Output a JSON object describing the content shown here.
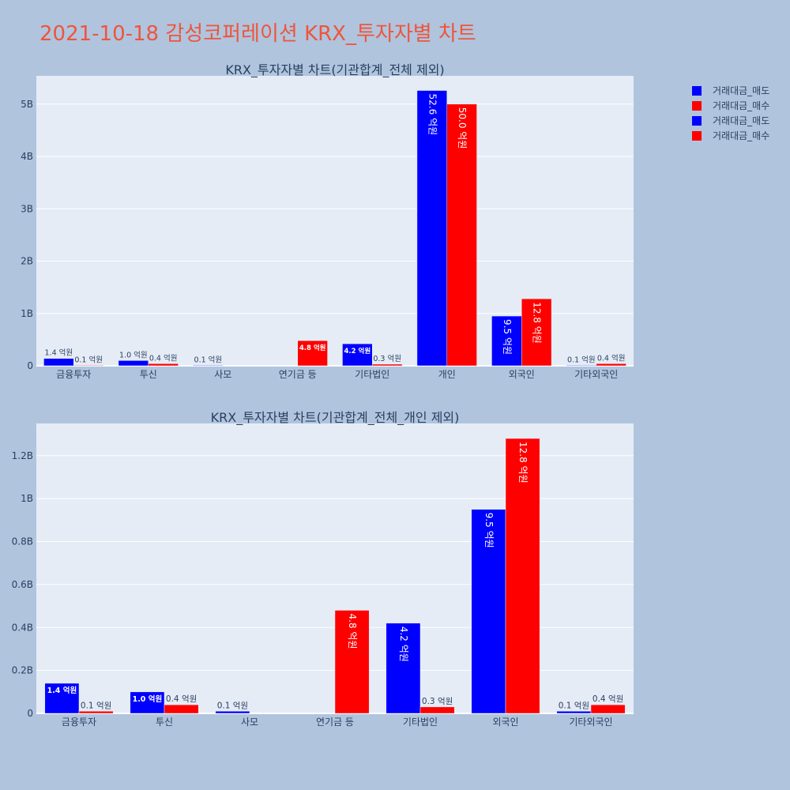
{
  "title": "2021-10-18 감성코퍼레이션 KRX_투자자별 차트",
  "legend": [
    {
      "label": "거래대금_매도",
      "color": "#0000ff"
    },
    {
      "label": "거래대금_매수",
      "color": "#ff0000"
    },
    {
      "label": "거래대금_매도",
      "color": "#0000ff"
    },
    {
      "label": "거래대금_매수",
      "color": "#ff0000"
    }
  ],
  "chart_data": [
    {
      "type": "bar",
      "title": "KRX_투자자별 차트(기관합계_전체 제외)",
      "categories": [
        "금융투자",
        "투신",
        "사모",
        "연기금 등",
        "기타법인",
        "개인",
        "외국인",
        "기타외국인"
      ],
      "yticks": [
        {
          "v": 0,
          "label": "0"
        },
        {
          "v": 1000000000.0,
          "label": "1B"
        },
        {
          "v": 2000000000.0,
          "label": "2B"
        },
        {
          "v": 3000000000.0,
          "label": "3B"
        },
        {
          "v": 4000000000.0,
          "label": "4B"
        },
        {
          "v": 5000000000.0,
          "label": "5B"
        }
      ],
      "ylim": [
        0,
        5540000000.0
      ],
      "series": [
        {
          "name": "거래대금_매도",
          "color": "#0000ff",
          "values": [
            140000000.0,
            100000000.0,
            10000000.0,
            0,
            420000000.0,
            5260000000.0,
            950000000.0,
            10000000.0
          ],
          "labels": [
            "1.4 억원",
            "1.0 억원",
            "0.1 억원",
            "",
            "4.2 억원",
            "52.6 억원",
            "9.5 억원",
            "0.1 억원"
          ]
        },
        {
          "name": "거래대금_매수",
          "color": "#ff0000",
          "values": [
            10000000.0,
            40000000.0,
            0,
            480000000.0,
            30000000.0,
            5000000000.0,
            1280000000.0,
            40000000.0
          ],
          "labels": [
            "0.1 억원",
            "0.4 억원",
            "",
            "4.8 억원",
            "0.3 억원",
            "50.0 억원",
            "12.8 억원",
            "0.4 억원"
          ]
        }
      ]
    },
    {
      "type": "bar",
      "title": "KRX_투자자별 차트(기관합계_전체_개인 제외)",
      "categories": [
        "금융투자",
        "투신",
        "사모",
        "연기금 등",
        "기타법인",
        "외국인",
        "기타외국인"
      ],
      "yticks": [
        {
          "v": 0,
          "label": "0"
        },
        {
          "v": 200000000.0,
          "label": "0.2B"
        },
        {
          "v": 400000000.0,
          "label": "0.4B"
        },
        {
          "v": 600000000.0,
          "label": "0.6B"
        },
        {
          "v": 800000000.0,
          "label": "0.8B"
        },
        {
          "v": 1000000000.0,
          "label": "1B"
        },
        {
          "v": 1200000000.0,
          "label": "1.2B"
        }
      ],
      "ylim": [
        0,
        1350000000.0
      ],
      "series": [
        {
          "name": "거래대금_매도",
          "color": "#0000ff",
          "values": [
            140000000.0,
            100000000.0,
            10000000.0,
            0,
            420000000.0,
            950000000.0,
            10000000.0
          ],
          "labels": [
            "1.4 억원",
            "1.0 억원",
            "0.1 억원",
            "",
            "4.2 억원",
            "9.5 억원",
            "0.1 억원"
          ]
        },
        {
          "name": "거래대금_매수",
          "color": "#ff0000",
          "values": [
            10000000.0,
            40000000.0,
            0,
            480000000.0,
            30000000.0,
            1280000000.0,
            40000000.0
          ],
          "labels": [
            "0.1 억원",
            "0.4 억원",
            "",
            "4.8 억원",
            "0.3 억원",
            "12.8 억원",
            "0.4 억원"
          ]
        }
      ]
    }
  ]
}
